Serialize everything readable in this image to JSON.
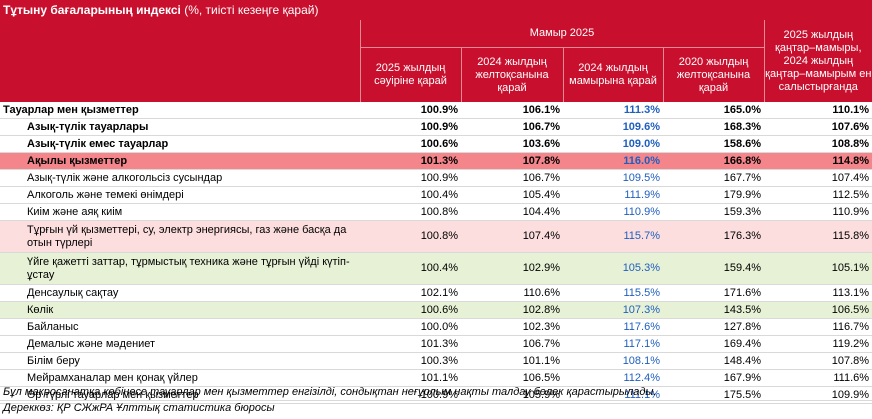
{
  "title": {
    "bold": "Тұтыну бағаларының индексі",
    "rest": " (%, тиісті кезеңге қарай)"
  },
  "header": {
    "group": "Мамыр 2025",
    "last": "2025 жылдың қаңтар–мамыры, 2024 жылдың қаңтар–мамырым ен салыстырғанда",
    "cols": [
      "2025 жылдың сәуіріне қарай",
      "2024 жылдың желтоқсанына қарай",
      "2024 жылдың мамырына қарай",
      "2020 жылдың желтоқсанына қарай"
    ]
  },
  "rows": [
    {
      "label": "Тауарлар мен қызметтер",
      "v": [
        "100.9%",
        "106.1%",
        "111.3%",
        "165.0%",
        "110.1%"
      ]
    },
    {
      "label": "Азық-түлік тауарлары",
      "v": [
        "100.9%",
        "106.7%",
        "109.6%",
        "168.3%",
        "107.6%"
      ]
    },
    {
      "label": "Азық-түлік емес тауарлар",
      "v": [
        "100.6%",
        "103.6%",
        "109.0%",
        "158.6%",
        "108.8%"
      ]
    },
    {
      "label": "Ақылы қызметтер",
      "v": [
        "101.3%",
        "107.8%",
        "116.0%",
        "166.8%",
        "114.8%"
      ]
    },
    {
      "label": "Азық-түлік және алкогольсіз сусындар",
      "v": [
        "100.9%",
        "106.7%",
        "109.5%",
        "167.7%",
        "107.4%"
      ]
    },
    {
      "label": "Алкоголь және темекі өнімдері",
      "v": [
        "100.4%",
        "105.4%",
        "111.9%",
        "179.9%",
        "112.5%"
      ]
    },
    {
      "label": "Киім және аяқ киім",
      "v": [
        "100.8%",
        "104.4%",
        "110.9%",
        "159.3%",
        "110.9%"
      ]
    },
    {
      "label": "Тұрғын үй қызметтері, су, электр энергиясы, газ және басқа да отын түрлері",
      "v": [
        "100.8%",
        "107.4%",
        "115.7%",
        "176.3%",
        "115.8%"
      ]
    },
    {
      "label": "Үйге қажетті заттар, тұрмыстық техника және тұрғын үйді күтіп-ұстау",
      "v": [
        "100.4%",
        "102.9%",
        "105.3%",
        "159.4%",
        "105.1%"
      ]
    },
    {
      "label": "Денсаулық сақтау",
      "v": [
        "102.1%",
        "110.6%",
        "115.5%",
        "171.6%",
        "113.1%"
      ]
    },
    {
      "label": "Көлік",
      "v": [
        "100.6%",
        "102.8%",
        "107.3%",
        "143.5%",
        "106.5%"
      ]
    },
    {
      "label": "Байланыс",
      "v": [
        "100.0%",
        "102.3%",
        "117.6%",
        "127.8%",
        "116.7%"
      ]
    },
    {
      "label": "Демалыс және мәдениет",
      "v": [
        "101.3%",
        "106.7%",
        "117.1%",
        "169.4%",
        "119.2%"
      ]
    },
    {
      "label": "Білім беру",
      "v": [
        "100.3%",
        "101.1%",
        "108.1%",
        "148.4%",
        "107.8%"
      ]
    },
    {
      "label": "Мейрамханалар мен қонақ үйлер",
      "v": [
        "101.1%",
        "106.5%",
        "112.4%",
        "167.9%",
        "111.6%"
      ]
    },
    {
      "label": "Әр түрлі тауарлар мен қызметтер",
      "v": [
        "100.9%",
        "105.9%",
        "111.1%",
        "175.5%",
        "109.9%"
      ]
    }
  ],
  "footnote": "Бұл макросанатқа көбінесе тауарлар мен қызметтер енгізілді, сондықтан неғұрлым нақты талдау бөлек қарастырылады.",
  "source": "Дереккөз: ҚР СЖжРА Ұлттық статистика бюросы"
}
